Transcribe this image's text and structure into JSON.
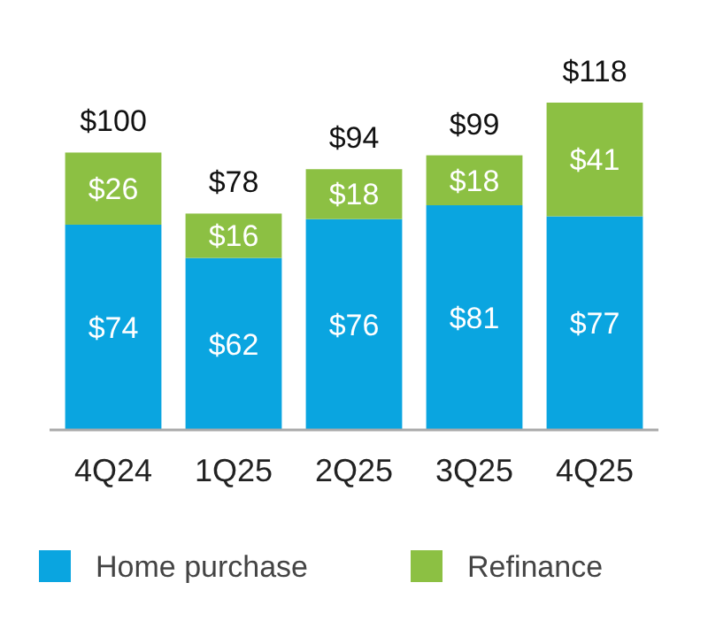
{
  "chart_data": {
    "type": "bar",
    "stacked": true,
    "categories": [
      "4Q24",
      "1Q25",
      "2Q25",
      "3Q25",
      "4Q25"
    ],
    "series": [
      {
        "name": "Home purchase",
        "color": "#0aa5e0",
        "values": [
          74,
          62,
          76,
          81,
          77
        ],
        "value_labels": [
          "$74",
          "$62",
          "$76",
          "$81",
          "$77"
        ]
      },
      {
        "name": "Refinance",
        "color": "#8cc043",
        "values": [
          26,
          16,
          18,
          18,
          41
        ],
        "value_labels": [
          "$26",
          "$16",
          "$18",
          "$18",
          "$41"
        ]
      }
    ],
    "totals": [
      "$100",
      "$78",
      "$94",
      "$99",
      "$118"
    ],
    "legend": "bottom"
  }
}
